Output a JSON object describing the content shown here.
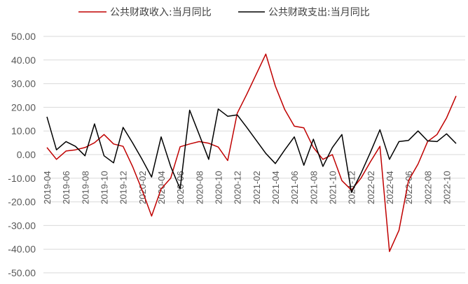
{
  "chart_data": {
    "type": "line",
    "title": "",
    "xlabel": "",
    "ylabel": "",
    "ylim": [
      -50,
      50
    ],
    "y_ticks": [
      "50.00",
      "40.00",
      "30.00",
      "20.00",
      "10.00",
      "0.00",
      "-10.00",
      "-20.00",
      "-30.00",
      "-40.00",
      "-50.00"
    ],
    "grid": "horizontal",
    "legend_position": "top",
    "x": [
      "2019-04",
      "2019-05",
      "2019-06",
      "2019-07",
      "2019-08",
      "2019-09",
      "2019-10",
      "2019-11",
      "2019-12",
      "2020-01",
      "2020-02",
      "2020-03",
      "2020-04",
      "2020-05",
      "2020-06",
      "2020-07",
      "2020-08",
      "2020-09",
      "2020-10",
      "2020-11",
      "2020-12",
      "2021-01",
      "2021-02",
      "2021-03",
      "2021-04",
      "2021-05",
      "2021-06",
      "2021-07",
      "2021-08",
      "2021-09",
      "2021-10",
      "2021-11",
      "2021-12",
      "2022-01",
      "2022-02",
      "2022-03",
      "2022-04",
      "2022-05",
      "2022-06",
      "2022-07",
      "2022-08",
      "2022-09",
      "2022-10",
      "2022-11"
    ],
    "x_tick_labels": [
      "2019-04",
      "2019-06",
      "2019-08",
      "2019-10",
      "2019-12",
      "2020-02",
      "2020-04",
      "2020-06",
      "2020-08",
      "2020-10",
      "2020-12",
      "2021-02",
      "2021-04",
      "2021-06",
      "2021-08",
      "2021-10",
      "2021-12",
      "2022-02",
      "2022-04",
      "2022-06",
      "2022-08",
      "2022-10"
    ],
    "series": [
      {
        "name": "公共财政收入:当月同比",
        "color": "#c00000",
        "values": [
          3.0,
          -2.0,
          1.5,
          2.0,
          3.0,
          5.0,
          8.5,
          4.5,
          3.5,
          -5.0,
          -15.0,
          -26.0,
          -14.5,
          -10.0,
          3.3,
          4.5,
          5.5,
          4.8,
          3.2,
          -2.5,
          17.5,
          25.5,
          34.0,
          42.5,
          29.0,
          19.0,
          12.0,
          11.3,
          3.0,
          -2.0,
          0.0,
          -11.0,
          -15.0,
          -10.0,
          -3.0,
          3.5,
          -41.0,
          -32.0,
          -11.0,
          -4.0,
          5.5,
          8.5,
          15.5,
          24.8
        ]
      },
      {
        "name": "公共财政支出:当月同比",
        "color": "#000000",
        "values": [
          16.0,
          2.0,
          5.5,
          3.5,
          -0.5,
          13.0,
          -0.5,
          -3.5,
          11.5,
          5.0,
          -2.0,
          -9.5,
          7.5,
          -5.0,
          -14.5,
          18.8,
          8.5,
          -2.0,
          19.3,
          16.2,
          16.8,
          11.5,
          6.0,
          0.5,
          -3.8,
          2.0,
          7.5,
          -4.5,
          6.5,
          -5.0,
          3.0,
          8.5,
          -16.0,
          -8.0,
          1.0,
          10.5,
          -2.0,
          5.5,
          6.0,
          10.0,
          5.8,
          5.5,
          8.8,
          4.7
        ]
      }
    ]
  }
}
